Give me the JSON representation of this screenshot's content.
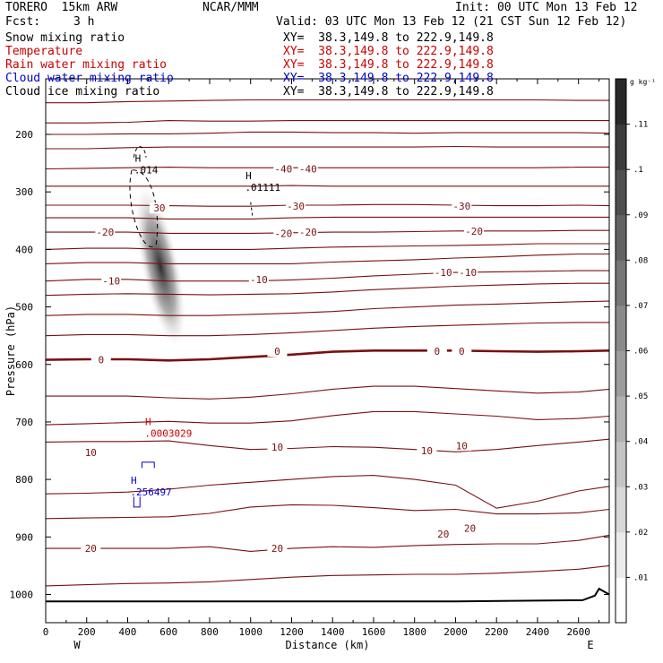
{
  "header": {
    "model": "TORERO  15km ARW",
    "center": "NCAR/MMM",
    "init": "Init: 00 UTC Mon 13 Feb 12",
    "fcst_label": "Fcst:",
    "fcst_value": "3 h",
    "valid": "Valid: 03 UTC Mon 13 Feb 12 (21 CST Sun 12 Feb 12)"
  },
  "fields": [
    {
      "name": "Snow mixing ratio",
      "xy": "XY=  38.3,149.8 to 222.9,149.8",
      "color": "#000000"
    },
    {
      "name": "Temperature",
      "xy": "XY=  38.3,149.8 to 222.9,149.8",
      "color": "#cc0000"
    },
    {
      "name": "Rain water mixing ratio",
      "xy": "XY=  38.3,149.8 to 222.9,149.8",
      "color": "#cc0000"
    },
    {
      "name": "Cloud water mixing ratio",
      "xy": "XY=  38.3,149.8 to 222.9,149.8",
      "color": "#0000cc"
    },
    {
      "name": "Cloud ice mixing ratio",
      "xy": "XY=  38.3,149.8 to 222.9,149.8",
      "color": "#000000"
    }
  ],
  "chart_data": {
    "type": "contour cross-section",
    "xlabel": "Distance (km)",
    "ylabel": "Pressure (hPa)",
    "xlim": [
      0,
      2750
    ],
    "ylim": [
      1050,
      100
    ],
    "x_ticks": [
      "0",
      "200",
      "400",
      "600",
      "800",
      "1000",
      "1200",
      "1400",
      "1600",
      "1800",
      "2000",
      "2200",
      "2400",
      "2600"
    ],
    "y_ticks": [
      "200",
      "300",
      "400",
      "500",
      "600",
      "700",
      "800",
      "900",
      "1000"
    ],
    "west_label": "W",
    "east_label": "E",
    "colorbar": {
      "unit": "g kg⁻¹",
      "range": [
        0,
        0.12
      ],
      "labels": [
        ".01",
        ".02",
        ".03",
        ".04",
        ".05",
        ".06",
        ".07",
        ".08",
        ".09",
        ".1",
        ".11"
      ]
    },
    "temperature_contour_labels": [
      {
        "text": "-40",
        "x": 1160,
        "p": 260
      },
      {
        "text": "-40",
        "x": 1280,
        "p": 260
      },
      {
        "text": "-30",
        "x": 1220,
        "p": 325
      },
      {
        "text": "-30",
        "x": 2030,
        "p": 325
      },
      {
        "text": "-20",
        "x": 290,
        "p": 370
      },
      {
        "text": "-20",
        "x": 1160,
        "p": 372
      },
      {
        "text": "-20",
        "x": 1280,
        "p": 370
      },
      {
        "text": "-20",
        "x": 2090,
        "p": 368
      },
      {
        "text": "-10",
        "x": 320,
        "p": 455
      },
      {
        "text": "-10",
        "x": 1040,
        "p": 452
      },
      {
        "text": "-10",
        "x": 1940,
        "p": 440
      },
      {
        "text": "-10",
        "x": 2060,
        "p": 440
      },
      {
        "text": "0",
        "x": 270,
        "p": 592
      },
      {
        "text": "0",
        "x": 1130,
        "p": 577
      },
      {
        "text": "0",
        "x": 1910,
        "p": 577
      },
      {
        "text": "0",
        "x": 2030,
        "p": 577
      },
      {
        "text": "10",
        "x": 220,
        "p": 753
      },
      {
        "text": "10",
        "x": 1130,
        "p": 744
      },
      {
        "text": "10",
        "x": 1860,
        "p": 750
      },
      {
        "text": "10",
        "x": 2030,
        "p": 741
      },
      {
        "text": "20",
        "x": 220,
        "p": 920
      },
      {
        "text": "20",
        "x": 1130,
        "p": 920
      },
      {
        "text": "20",
        "x": 1940,
        "p": 895
      },
      {
        "text": "20",
        "x": 2070,
        "p": 885
      },
      {
        "text": "30",
        "x": 555,
        "p": 328
      }
    ],
    "isotherms": [
      {
        "p": [
          145,
          145,
          143,
          142,
          141,
          140,
          140,
          140,
          140,
          140,
          140,
          140,
          140,
          141,
          141
        ]
      },
      {
        "p": [
          180,
          180,
          179,
          176,
          177,
          177,
          176,
          176,
          176,
          176,
          176,
          176,
          176,
          176,
          176
        ]
      },
      {
        "p": [
          200,
          200,
          199,
          199,
          198,
          196,
          196,
          197,
          197,
          198,
          197,
          197,
          197,
          197,
          198
        ]
      },
      {
        "p": [
          225,
          225,
          223,
          222,
          222,
          222,
          222,
          222,
          222,
          222,
          221,
          222,
          222,
          222,
          222
        ]
      },
      {
        "p": [
          260,
          259,
          258,
          257,
          258,
          258,
          258,
          258,
          258,
          258,
          258,
          258,
          258,
          257,
          257
        ]
      },
      {
        "p": [
          290,
          290,
          290,
          290,
          290,
          290,
          289,
          290,
          290,
          290,
          290,
          290,
          290,
          290,
          290
        ]
      },
      {
        "p": [
          323,
          323,
          323,
          324,
          325,
          325,
          323,
          323,
          322,
          322,
          323,
          324,
          324,
          323,
          324
        ]
      },
      {
        "p": [
          345,
          345,
          345,
          347,
          347,
          347,
          345,
          344,
          344,
          344,
          344,
          344,
          344,
          344,
          344
        ]
      },
      {
        "p": [
          370,
          370,
          370,
          372,
          372,
          372,
          371,
          370,
          370,
          369,
          368,
          368,
          368,
          367,
          367
        ]
      },
      {
        "p": [
          400,
          398,
          398,
          400,
          400,
          400,
          398,
          396,
          395,
          394,
          393,
          392,
          390,
          390,
          390
        ]
      },
      {
        "p": [
          425,
          423,
          423,
          425,
          425,
          425,
          425,
          422,
          420,
          418,
          415,
          413,
          410,
          408,
          408
        ]
      },
      {
        "p": [
          455,
          452,
          452,
          455,
          455,
          455,
          453,
          450,
          446,
          443,
          440,
          439,
          438,
          437,
          437
        ]
      },
      {
        "p": [
          480,
          478,
          477,
          478,
          479,
          478,
          477,
          474,
          470,
          467,
          464,
          462,
          460,
          459,
          459
        ]
      },
      {
        "p": [
          515,
          513,
          513,
          515,
          515,
          513,
          511,
          508,
          503,
          500,
          497,
          495,
          493,
          491,
          490
        ]
      },
      {
        "p": [
          550,
          548,
          548,
          550,
          550,
          548,
          545,
          541,
          537,
          534,
          532,
          530,
          528,
          527,
          527
        ]
      },
      {
        "p": [
          592,
          591,
          591,
          593,
          591,
          587,
          583,
          578,
          576,
          576,
          576,
          577,
          578,
          577,
          576
        ],
        "bold": true
      },
      {
        "p": [
          655,
          655,
          655,
          658,
          660,
          657,
          651,
          643,
          638,
          638,
          642,
          646,
          650,
          648,
          643
        ]
      },
      {
        "p": [
          705,
          703,
          701,
          699,
          702,
          702,
          698,
          689,
          682,
          682,
          686,
          690,
          696,
          694,
          690
        ]
      },
      {
        "p": [
          735,
          734,
          734,
          733,
          741,
          748,
          746,
          743,
          744,
          748,
          752,
          748,
          741,
          735,
          730
        ]
      },
      {
        "p": [
          825,
          824,
          822,
          817,
          810,
          805,
          800,
          795,
          793,
          800,
          810,
          850,
          838,
          820,
          812
        ]
      },
      {
        "p": [
          868,
          867,
          866,
          865,
          859,
          848,
          844,
          845,
          849,
          854,
          852,
          860,
          860,
          858,
          852
        ]
      },
      {
        "p": [
          920,
          920,
          920,
          920,
          917,
          925,
          920,
          917,
          918,
          915,
          913,
          912,
          912,
          906,
          897
        ]
      },
      {
        "p": [
          985,
          983,
          981,
          980,
          978,
          974,
          970,
          967,
          966,
          965,
          965,
          963,
          960,
          956,
          950
        ]
      }
    ],
    "x_km": [
      0,
      200,
      400,
      600,
      800,
      1000,
      1200,
      1400,
      1600,
      1800,
      2000,
      2200,
      2400,
      2600,
      2750
    ],
    "surface": {
      "x": [
        0,
        2000,
        2620,
        2680,
        2700,
        2750
      ],
      "p": [
        1012,
        1012,
        1010,
        1002,
        990,
        1000
      ]
    },
    "markers": [
      {
        "field": "snow",
        "label": "H",
        "value": ".014",
        "x": 450,
        "p": 260,
        "color": "#000000"
      },
      {
        "field": "ice",
        "label": "H",
        "value": ".01111",
        "x": 990,
        "p": 290,
        "color": "#000000"
      },
      {
        "field": "rain",
        "label": "H",
        "value": ".0003029",
        "x": 500,
        "p": 718,
        "color": "#cc0000"
      },
      {
        "field": "cloud water",
        "label": "H",
        "value": ".256497",
        "x": 430,
        "p": 820,
        "color": "#0000cc"
      }
    ],
    "snow_max": {
      "x": 560,
      "p": 430,
      "value": 0.12
    }
  }
}
